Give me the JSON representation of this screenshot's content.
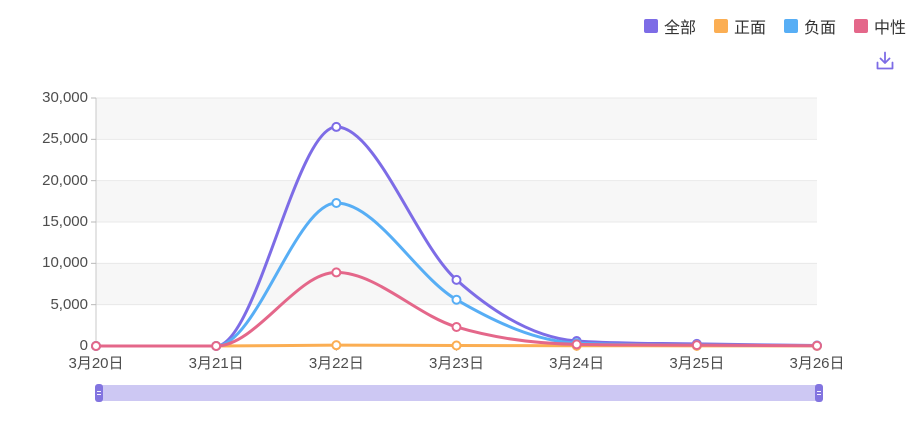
{
  "icons": {
    "download": "⤓"
  },
  "colors": {
    "background": "#ffffff",
    "split_area": "#f7f7f7",
    "grid_line": "#e9e9e9",
    "axis_line": "#c9c9c9",
    "axis_tick": "#b9b9b9",
    "axis_label": "#4d4d4d",
    "legend_text": "#333333",
    "marker_fill": "#ffffff",
    "download_icon": "#7d6ce6",
    "datazoom_track": "#cdc8f3",
    "datazoom_handle": "#8274e0"
  },
  "chart_data": {
    "type": "line",
    "title": "",
    "xlabel": "",
    "ylabel": "",
    "smooth": true,
    "grid": true,
    "split_area": true,
    "legend_position": "top-right",
    "categories": [
      "3月20日",
      "3月21日",
      "3月22日",
      "3月23日",
      "3月24日",
      "3月25日",
      "3月26日"
    ],
    "series": [
      {
        "name": "全部",
        "color": "#7d6ce6",
        "values": [
          0,
          0,
          26500,
          8000,
          600,
          250,
          60
        ]
      },
      {
        "name": "正面",
        "color": "#fbae53",
        "values": [
          0,
          0,
          100,
          60,
          30,
          20,
          10
        ]
      },
      {
        "name": "负面",
        "color": "#57aef5",
        "values": [
          0,
          0,
          17300,
          5600,
          350,
          130,
          40
        ]
      },
      {
        "name": "中性",
        "color": "#e4678a",
        "values": [
          0,
          0,
          8900,
          2300,
          200,
          110,
          30
        ]
      }
    ],
    "ylim": [
      0,
      30000
    ],
    "y_ticks": [
      0,
      5000,
      10000,
      15000,
      20000,
      25000,
      30000
    ],
    "y_tick_labels": [
      "0",
      "5,000",
      "10,000",
      "15,000",
      "20,000",
      "25,000",
      "30,000"
    ]
  }
}
